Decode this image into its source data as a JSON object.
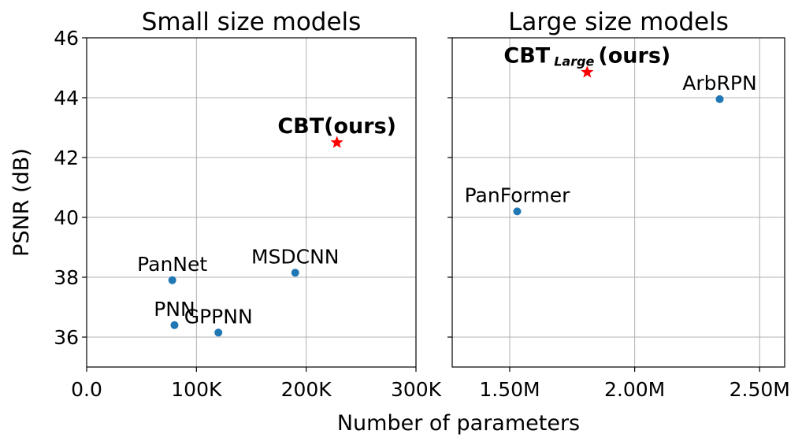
{
  "chart_data": [
    {
      "type": "scatter",
      "title": "Small size models",
      "ylabel": "PSNR (dB)",
      "xlim": [
        0,
        300000
      ],
      "ylim": [
        35,
        46
      ],
      "x_ticks": [
        0,
        100000,
        200000,
        300000
      ],
      "x_tick_labels": [
        "0.0",
        "100K",
        "200K",
        "300K"
      ],
      "y_ticks": [
        36,
        38,
        40,
        42,
        44,
        46
      ],
      "y_tick_labels": [
        "36",
        "38",
        "40",
        "42",
        "44",
        "46"
      ],
      "grid": true,
      "points": [
        {
          "label": "PanNet",
          "x": 78000,
          "y": 37.9,
          "marker": "circle",
          "color": "#1f77b4"
        },
        {
          "label": "PNN",
          "x": 80000,
          "y": 36.4,
          "marker": "circle",
          "color": "#1f77b4"
        },
        {
          "label": "GPPNN",
          "x": 120000,
          "y": 36.15,
          "marker": "circle",
          "color": "#1f77b4"
        },
        {
          "label": "MSDCNN",
          "x": 190000,
          "y": 38.15,
          "marker": "circle",
          "color": "#1f77b4"
        },
        {
          "label": "CBT(ours)",
          "x": 228000,
          "y": 42.5,
          "marker": "star",
          "color": "#ff0000",
          "bold": true
        }
      ]
    },
    {
      "type": "scatter",
      "title": "Large size models",
      "xlim": [
        1270000,
        2600000
      ],
      "ylim": [
        35,
        46
      ],
      "x_ticks": [
        1500000,
        2000000,
        2500000
      ],
      "x_tick_labels": [
        "1.50M",
        "2.00M",
        "2.50M"
      ],
      "y_ticks": [
        36,
        38,
        40,
        42,
        44,
        46
      ],
      "grid": true,
      "points": [
        {
          "label": "PanFormer",
          "x": 1530000,
          "y": 40.2,
          "marker": "circle",
          "color": "#1f77b4"
        },
        {
          "label": "ArbRPN",
          "x": 2340000,
          "y": 43.95,
          "marker": "circle",
          "color": "#1f77b4"
        },
        {
          "label": "CBT",
          "label_subscript": "Large",
          "label_suffix": "(ours)",
          "x": 1810000,
          "y": 44.85,
          "marker": "star",
          "color": "#ff0000",
          "bold": true
        }
      ]
    }
  ],
  "shared_xlabel": "Number of parameters"
}
